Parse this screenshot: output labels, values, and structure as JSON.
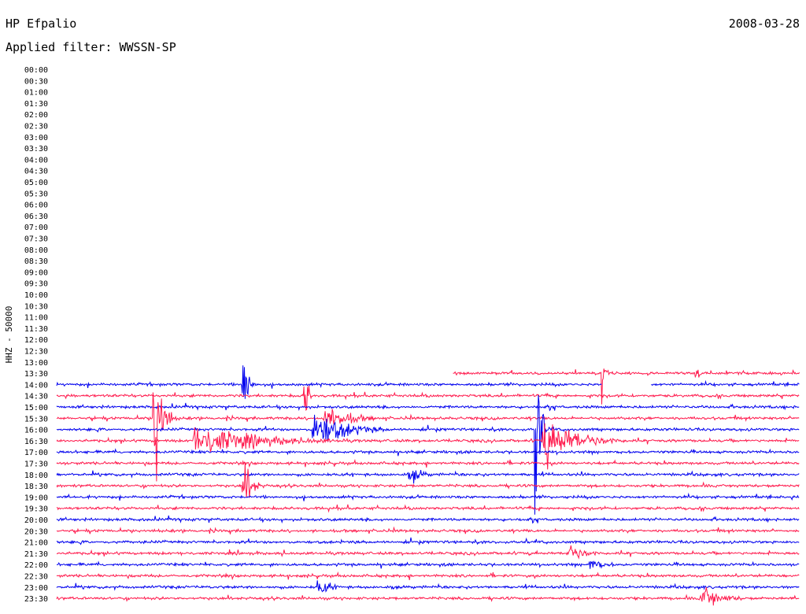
{
  "header": {
    "station": "HP Efpalio",
    "date": "2008-03-28",
    "filter": "Applied filter: WWSSN-SP"
  },
  "chart_data": {
    "type": "line",
    "ylabel": "HHZ - 50000",
    "xlim": [
      0,
      30
    ],
    "colors": [
      "#0000ee",
      "#ff1a4d"
    ],
    "data_start_row": "13:30",
    "data_start_minute": 16,
    "data_gap": {
      "row": "14:00",
      "from_minute": 22,
      "to_minute": 24
    },
    "rows": [
      "00:00",
      "00:30",
      "01:00",
      "01:30",
      "02:00",
      "02:30",
      "03:00",
      "03:30",
      "04:00",
      "04:30",
      "05:00",
      "05:30",
      "06:00",
      "06:30",
      "07:00",
      "07:30",
      "08:00",
      "08:30",
      "09:00",
      "09:30",
      "10:00",
      "10:30",
      "11:00",
      "11:30",
      "12:00",
      "12:30",
      "13:00",
      "13:30",
      "14:00",
      "14:30",
      "15:00",
      "15:30",
      "16:00",
      "16:30",
      "17:00",
      "17:30",
      "18:00",
      "18:30",
      "19:00",
      "19:30",
      "20:00",
      "20:30",
      "21:00",
      "21:30",
      "22:00",
      "22:30",
      "23:00",
      "23:30"
    ],
    "events": [
      {
        "row": "14:00",
        "minute": 7.5,
        "amplitude": 140,
        "duration": 0.12
      },
      {
        "row": "14:00",
        "minute": 7.6,
        "amplitude": 130,
        "duration": 0.12
      },
      {
        "row": "15:30",
        "minute": 3.9,
        "amplitude": 185,
        "duration": 0.25
      },
      {
        "row": "16:00",
        "minute": 10.3,
        "amplitude": 40,
        "duration": 1.2
      },
      {
        "row": "14:30",
        "minute": 10.0,
        "amplitude": 100,
        "duration": 0.1
      },
      {
        "row": "16:30",
        "minute": 5.5,
        "amplitude": 30,
        "duration": 2.5
      },
      {
        "row": "16:00",
        "minute": 19.3,
        "amplitude": 300,
        "duration": 0.15
      },
      {
        "row": "16:30",
        "minute": 19.6,
        "amplitude": 50,
        "duration": 1.2
      },
      {
        "row": "18:30",
        "minute": 7.5,
        "amplitude": 60,
        "duration": 0.3
      },
      {
        "row": "23:30",
        "minute": 26.0,
        "amplitude": 25,
        "duration": 0.8
      },
      {
        "row": "21:30",
        "minute": 20.6,
        "amplitude": 18,
        "duration": 0.7
      },
      {
        "row": "22:00",
        "minute": 21.5,
        "amplitude": 15,
        "duration": 0.6
      },
      {
        "row": "23:00",
        "minute": 10.5,
        "amplitude": 15,
        "duration": 0.6
      },
      {
        "row": "15:30",
        "minute": 10.8,
        "amplitude": 25,
        "duration": 1.0
      },
      {
        "row": "18:00",
        "minute": 14.2,
        "amplitude": 18,
        "duration": 0.5
      },
      {
        "row": "13:30",
        "minute": 22.0,
        "amplitude": 60,
        "duration": 0.1
      },
      {
        "row": "13:30",
        "minute": 25.8,
        "amplitude": 40,
        "duration": 0.1
      }
    ]
  }
}
